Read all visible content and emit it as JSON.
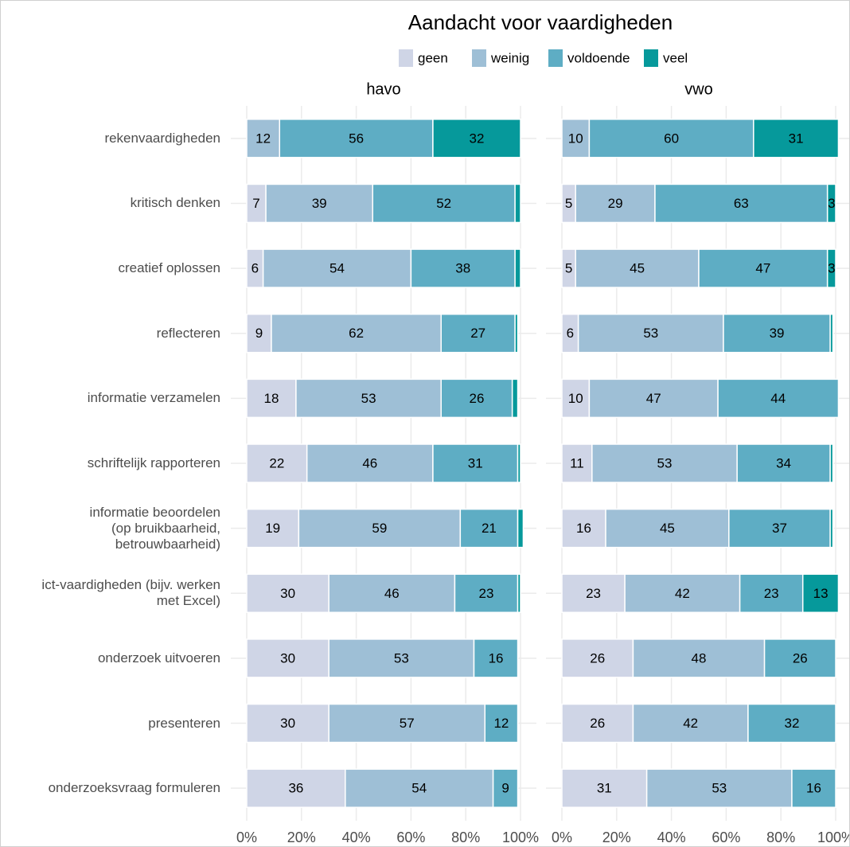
{
  "chart_data": {
    "type": "bar",
    "title": "Aandacht voor vaardigheden",
    "categories": [
      "rekenvaardigheden",
      "kritisch denken",
      "creatief oplossen",
      "reflecteren",
      "informatie verzamelen",
      "schriftelijk rapporteren",
      "informatie beoordelen\n(op bruikbaarheid,\nbetrouwbaarheid)",
      "ict-vaardigheden (bijv. werken\nmet Excel)",
      "onderzoek uitvoeren",
      "presenteren",
      "onderzoeksvraag formuleren"
    ],
    "series": [
      {
        "name": "geen",
        "color": "#cfd5e6"
      },
      {
        "name": "weinig",
        "color": "#9ebfd6"
      },
      {
        "name": "voldoende",
        "color": "#5eadc4"
      },
      {
        "name": "veel",
        "color": "#06999b"
      }
    ],
    "panels": [
      {
        "title": "havo",
        "values": [
          [
            0,
            7,
            6,
            9,
            18,
            22,
            19,
            30,
            30,
            30,
            36
          ],
          [
            12,
            39,
            54,
            62,
            53,
            46,
            59,
            46,
            53,
            57,
            54
          ],
          [
            56,
            52,
            38,
            27,
            26,
            31,
            21,
            23,
            16,
            12,
            9
          ],
          [
            32,
            2,
            2,
            1,
            2,
            1,
            2,
            1,
            0,
            0,
            0
          ]
        ],
        "value_labels": [
          [
            null,
            "7",
            "6",
            "9",
            "18",
            "22",
            "19",
            "30",
            "30",
            "30",
            "36"
          ],
          [
            "12",
            "39",
            "54",
            "62",
            "53",
            "46",
            "59",
            "46",
            "53",
            "57",
            "54"
          ],
          [
            "56",
            "52",
            "38",
            "27",
            "26",
            "31",
            "21",
            "23",
            "16",
            "12",
            "9"
          ],
          [
            "32",
            null,
            null,
            null,
            null,
            null,
            null,
            null,
            null,
            null,
            null
          ]
        ]
      },
      {
        "title": "vwo",
        "values": [
          [
            0,
            5,
            5,
            6,
            10,
            11,
            16,
            23,
            26,
            26,
            31
          ],
          [
            10,
            29,
            45,
            53,
            47,
            53,
            45,
            42,
            48,
            42,
            53
          ],
          [
            60,
            63,
            47,
            39,
            44,
            34,
            37,
            23,
            26,
            32,
            16
          ],
          [
            31,
            3,
            3,
            1,
            0,
            1,
            1,
            13,
            0,
            0,
            0
          ]
        ],
        "value_labels": [
          [
            null,
            "5",
            "5",
            "6",
            "10",
            "11",
            "16",
            "23",
            "26",
            "26",
            "31"
          ],
          [
            "10",
            "29",
            "45",
            "53",
            "47",
            "53",
            "45",
            "42",
            "48",
            "42",
            "53"
          ],
          [
            "60",
            "63",
            "47",
            "39",
            "44",
            "34",
            "37",
            "23",
            "26",
            "32",
            "16"
          ],
          [
            "31",
            "3",
            "3",
            null,
            null,
            null,
            null,
            "13",
            null,
            null,
            null
          ]
        ]
      }
    ],
    "xlim": [
      0,
      100
    ],
    "xticks": [
      {
        "value": 0,
        "label": "0%"
      },
      {
        "value": 20,
        "label": "20%"
      },
      {
        "value": 40,
        "label": "40%"
      },
      {
        "value": 60,
        "label": "60%"
      },
      {
        "value": 80,
        "label": "80%"
      },
      {
        "value": 100,
        "label": "100%"
      }
    ],
    "grid": true
  }
}
